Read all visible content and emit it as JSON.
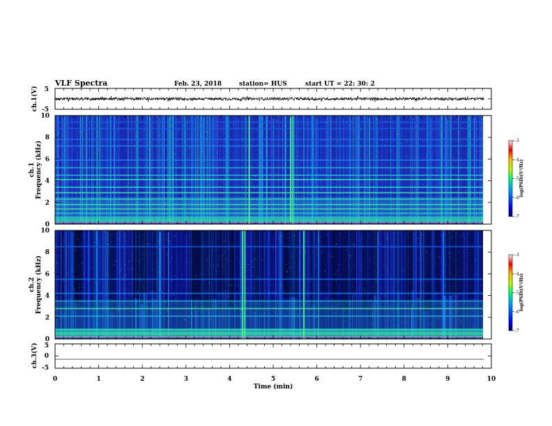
{
  "header": {
    "title": "VLF Spectra",
    "date": "Feb. 23, 2018",
    "station": "station= HUS",
    "start": "start  UT =   22: 30: 2"
  },
  "chart_data": [
    {
      "type": "line",
      "name": "ch1-waveform",
      "ylabel": "ch.1(V)",
      "ylim": [
        -5,
        5
      ],
      "yticks": [
        "5",
        "-5"
      ],
      "xlim": [
        0,
        10
      ],
      "trace_end_min": 9.83,
      "baseline_v": 0,
      "noise_amplitude_v": 0.7,
      "color": "#000000"
    },
    {
      "type": "heatmap",
      "name": "ch1-spectrogram",
      "ylabel_channel": "ch.1",
      "ylabel": "Frequency (kHz)",
      "ylim": [
        0,
        10
      ],
      "yticks": [
        "0",
        "2",
        "4",
        "6",
        "8",
        "10"
      ],
      "xlim": [
        0,
        10
      ],
      "data_end_min": 9.83,
      "bright_bursts_min": [
        5.4,
        5.45,
        4.45
      ],
      "colorbar": {
        "label": "log(PSD)(V²/Hz)",
        "range": [
          -7,
          -3
        ],
        "ticks": [
          "-3",
          "-4",
          "-5",
          "-6",
          "-7"
        ]
      }
    },
    {
      "type": "heatmap",
      "name": "ch2-spectrogram",
      "ylabel_channel": "ch.2",
      "ylabel": "Frequency (kHz)",
      "ylim": [
        0,
        10
      ],
      "yticks": [
        "0",
        "2",
        "4",
        "6",
        "8",
        "10"
      ],
      "xlim": [
        0,
        10
      ],
      "data_end_min": 9.83,
      "bright_bursts_min": [
        4.3,
        4.35,
        5.7
      ],
      "colorbar": {
        "label": "log(PSD)(V²/Hz)",
        "range": [
          -7,
          -3
        ],
        "ticks": [
          "-3",
          "-4",
          "-5",
          "-6",
          "-7"
        ]
      }
    },
    {
      "type": "line",
      "name": "ch3-waveform",
      "ylabel": "ch.3(V)",
      "ylim": [
        -5,
        5
      ],
      "yticks": [
        "5",
        "0",
        "-5"
      ],
      "xlim": [
        0,
        10
      ],
      "trace_end_min": 9.83,
      "baseline_v": -1.3,
      "noise_amplitude_v": 0,
      "color": "#000000"
    }
  ],
  "xaxis": {
    "label": "Time  (min)",
    "ticks": [
      "0",
      "1",
      "2",
      "3",
      "4",
      "5",
      "6",
      "7",
      "8",
      "9",
      "10"
    ]
  }
}
